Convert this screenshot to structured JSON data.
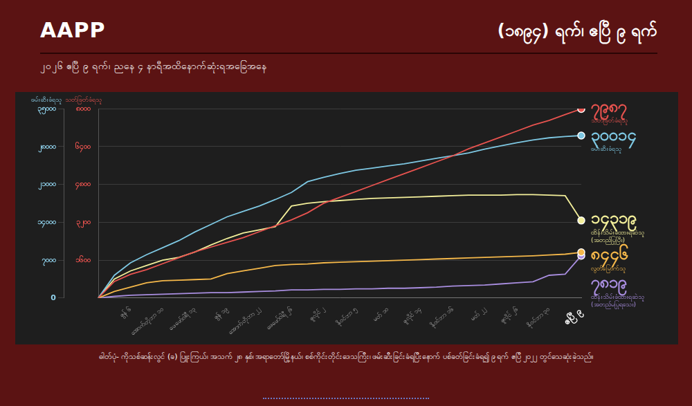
{
  "header": {
    "brand": "AAPP",
    "title": "(၁၈၉၄) ရက်၊ ဧပြီ ၉ ရက်",
    "subtitle": "၂၀၂၆ ဧပြီ ၉ ရက်၊ ညနေ ၄ နာရီအထိနောက်ဆုံးရအခြေအနေ"
  },
  "caption": "ဓါတ်ပုံ- ကိုသစ်ဆန်းလွင် (ခ) ပြူးကြယ်၊ အသက် ၂၈ နှစ်၊ အရာတော်မြို့နယ်၊ စစ်ကိုင်းတိုင်းဒေသကြီး၊ ဖမ်းဆီးခြင်းခံရပြီးနောက် ပစ်ခတ်ခြင်းခံရ၍ ၉ ရက် ဧပြီ ၂၀၂၂ တွင်သေဆုံးခဲ့သည်။",
  "chart_data": {
    "type": "line",
    "categories": [
      null,
      null,
      "ဇွန် ၆",
      null,
      "အောက်တိုဘာ ၁၀",
      null,
      "ဖေဖော်ဝါရီ ၁၃",
      null,
      "ဇွန် ၁၉",
      null,
      "အောက်တိုဘာ ၂၂",
      null,
      "ဖေဖော်ဝါရီ ၂၆",
      null,
      "ဇူလိုင် ၂",
      null,
      "နိုဝင်ဘာ ၅",
      null,
      "မတ် ၁၀",
      null,
      "ဇူလိုင် ၁၄",
      null,
      "နိုဝင်ဘာ ၁၆",
      null,
      "မတ် ၂၂",
      null,
      "ဇူလိုင် ၂၆",
      null,
      "နိုဝင်ဘာ ၃၀",
      null,
      "ဧပြီ ၉"
    ],
    "ylabel": "ဖမ်းဆီးခံရသူ",
    "ylim": [
      0,
      35000
    ],
    "yticks": [
      0,
      {
        "value": 7000,
        "label": "၇၀၀၀"
      },
      {
        "value": 14000,
        "label": "၁၄၀၀၀"
      },
      {
        "value": 21000,
        "label": "၂၁၀၀၀"
      },
      {
        "value": 28000,
        "label": "၂၈၀၀၀"
      },
      {
        "value": 35000,
        "label": "၃၅၀၀၀"
      }
    ],
    "y2label": "သတ်ဖြတ်ခံရသူ",
    "y2lim": [
      0,
      8000
    ],
    "y2ticks": [
      {
        "value": 1600,
        "label": "၁၆၀၀"
      },
      {
        "value": 3200,
        "label": "၃၂၀၀"
      },
      {
        "value": 4800,
        "label": "၄၈၀၀"
      },
      {
        "value": 6400,
        "label": "၆၄၀၀"
      },
      {
        "value": 8000,
        "label": "၈၀၀၀"
      }
    ],
    "grid": true,
    "series": [
      {
        "name": "သတ်ဖြတ်ခံရသူ",
        "color": "#e8534f",
        "axis": "y2",
        "values": [
          0,
          700,
          1000,
          1200,
          1450,
          1700,
          1950,
          2150,
          2350,
          2550,
          2800,
          3050,
          3300,
          3600,
          4000,
          4250,
          4500,
          4750,
          5000,
          5250,
          5500,
          5750,
          6000,
          6300,
          6550,
          6800,
          7050,
          7300,
          7500,
          7750,
          7987
        ],
        "value_labels": [
          null,
          null,
          null,
          null,
          null,
          null,
          null,
          null,
          null,
          null,
          null,
          null,
          null,
          null,
          null,
          null,
          null,
          null,
          null,
          null,
          null,
          null,
          null,
          null,
          null,
          null,
          null,
          null,
          null,
          null,
          "၇၉၈၇"
        ]
      },
      {
        "name": "ဖမ်းဆီးခံရသူ",
        "color": "#7ec8e3",
        "values": [
          0,
          4200,
          6500,
          8000,
          9300,
          10600,
          12200,
          13600,
          15000,
          16000,
          17000,
          18200,
          19500,
          21500,
          22300,
          23000,
          23600,
          24000,
          24400,
          24800,
          25300,
          25800,
          26300,
          26800,
          27500,
          28100,
          28700,
          29200,
          29600,
          29850,
          30014
        ],
        "value_labels": [
          null,
          null,
          null,
          null,
          null,
          null,
          null,
          null,
          null,
          null,
          null,
          null,
          null,
          null,
          null,
          null,
          null,
          null,
          null,
          null,
          null,
          null,
          null,
          null,
          null,
          null,
          null,
          null,
          null,
          null,
          "၃၀၀၁၄"
        ]
      },
      {
        "name": "ထိန်းသိမ်းခံထားရဆဲသူ (အတည်ပြုပြီး)",
        "color": "#f3ef9a",
        "values": [
          0,
          3500,
          5000,
          6000,
          7000,
          7500,
          8500,
          9800,
          11000,
          12000,
          12600,
          13200,
          17000,
          17500,
          17800,
          18000,
          18200,
          18400,
          18500,
          18600,
          18700,
          18800,
          18900,
          19000,
          19000,
          19000,
          19100,
          19100,
          19000,
          18900,
          14319
        ],
        "value_labels": [
          null,
          null,
          null,
          null,
          null,
          null,
          null,
          null,
          null,
          null,
          null,
          null,
          null,
          null,
          null,
          null,
          null,
          null,
          null,
          null,
          null,
          null,
          null,
          null,
          null,
          null,
          null,
          null,
          null,
          null,
          "၁၄၃၁၉"
        ]
      },
      {
        "name": "လွတ်မြောက်သူ",
        "color": "#f5b84a",
        "values": [
          0,
          1200,
          2000,
          2800,
          3200,
          3300,
          3400,
          3500,
          4500,
          5000,
          5500,
          6000,
          6200,
          6300,
          6500,
          6600,
          6700,
          6800,
          6900,
          7000,
          7100,
          7200,
          7300,
          7400,
          7500,
          7600,
          7700,
          7800,
          7950,
          8100,
          8446
        ],
        "value_labels": [
          null,
          null,
          null,
          null,
          null,
          null,
          null,
          null,
          null,
          null,
          null,
          null,
          null,
          null,
          null,
          null,
          null,
          null,
          null,
          null,
          null,
          null,
          null,
          null,
          null,
          null,
          null,
          null,
          null,
          null,
          "၈၄၄၆"
        ]
      },
      {
        "name": "ထိန်းသိမ်းခံထားရဆဲသူ (အတည်မပြုရသေး)",
        "color": "#a98ee0",
        "values": [
          0,
          300,
          500,
          600,
          700,
          800,
          900,
          1000,
          1000,
          1100,
          1200,
          1300,
          1500,
          1500,
          1600,
          1600,
          1700,
          1700,
          1800,
          1800,
          1900,
          2000,
          2200,
          2300,
          2400,
          2600,
          2800,
          3000,
          4200,
          4400,
          7819
        ],
        "value_labels": [
          null,
          null,
          null,
          null,
          null,
          null,
          null,
          null,
          null,
          null,
          null,
          null,
          null,
          null,
          null,
          null,
          null,
          null,
          null,
          null,
          null,
          null,
          null,
          null,
          null,
          null,
          null,
          null,
          null,
          null,
          "၇၈၁၉"
        ]
      }
    ]
  }
}
